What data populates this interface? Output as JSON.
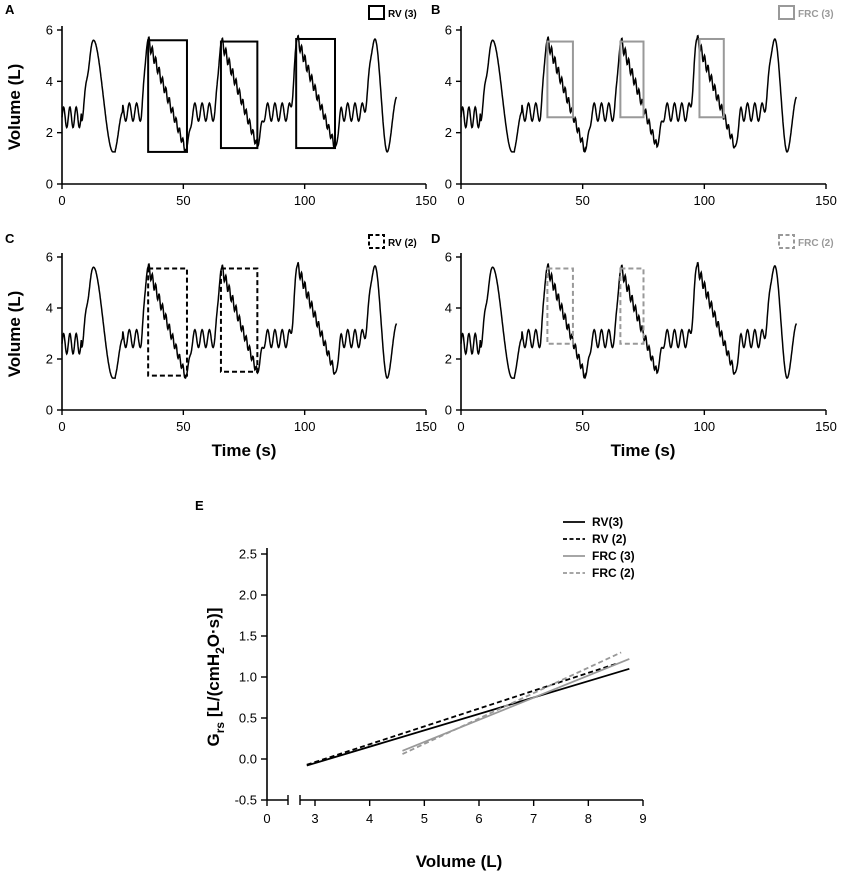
{
  "colors": {
    "black": "#000000",
    "gray": "#999999",
    "background": "#ffffff"
  },
  "chart_data": [
    {
      "panel": "A",
      "type": "line",
      "xlabel": "",
      "ylabel": "Volume (L)",
      "xlim": [
        0,
        150
      ],
      "ylim": [
        0,
        6
      ],
      "xticks": [
        0,
        50,
        100,
        150
      ],
      "yticks": [
        0,
        2,
        4,
        6
      ],
      "legend": {
        "label": "RV (3)",
        "style": "solid",
        "color": "#000000"
      },
      "boxes": [
        {
          "x0": 35.5,
          "x1": 51.5,
          "y0": 1.25,
          "y1": 5.6,
          "style": "solid",
          "color": "#000000"
        },
        {
          "x0": 65.5,
          "x1": 80.5,
          "y0": 1.4,
          "y1": 5.55,
          "style": "solid",
          "color": "#000000"
        },
        {
          "x0": 96.5,
          "x1": 112.5,
          "y0": 1.4,
          "y1": 5.65,
          "style": "solid",
          "color": "#000000"
        }
      ]
    },
    {
      "panel": "B",
      "type": "line",
      "xlabel": "",
      "ylabel": "",
      "xlim": [
        0,
        150
      ],
      "ylim": [
        0,
        6
      ],
      "xticks": [
        0,
        50,
        100,
        150
      ],
      "yticks": [
        0,
        2,
        4,
        6
      ],
      "legend": {
        "label": "FRC (3)",
        "style": "solid",
        "color": "#999999"
      },
      "boxes": [
        {
          "x0": 35.5,
          "x1": 46,
          "y0": 2.6,
          "y1": 5.55,
          "style": "solid",
          "color": "#999999"
        },
        {
          "x0": 65.5,
          "x1": 75,
          "y0": 2.6,
          "y1": 5.55,
          "style": "solid",
          "color": "#999999"
        },
        {
          "x0": 98,
          "x1": 108,
          "y0": 2.6,
          "y1": 5.65,
          "style": "solid",
          "color": "#999999"
        }
      ]
    },
    {
      "panel": "C",
      "type": "line",
      "xlabel": "Time (s)",
      "ylabel": "Volume (L)",
      "xlim": [
        0,
        150
      ],
      "ylim": [
        0,
        6
      ],
      "xticks": [
        0,
        50,
        100,
        150
      ],
      "yticks": [
        0,
        2,
        4,
        6
      ],
      "legend": {
        "label": "RV (2)",
        "style": "dashed",
        "color": "#000000"
      },
      "boxes": [
        {
          "x0": 35.5,
          "x1": 51.5,
          "y0": 1.35,
          "y1": 5.55,
          "style": "dashed",
          "color": "#000000"
        },
        {
          "x0": 65.5,
          "x1": 80.5,
          "y0": 1.5,
          "y1": 5.55,
          "style": "dashed",
          "color": "#000000"
        }
      ]
    },
    {
      "panel": "D",
      "type": "line",
      "xlabel": "Time (s)",
      "ylabel": "",
      "xlim": [
        0,
        150
      ],
      "ylim": [
        0,
        6
      ],
      "xticks": [
        0,
        50,
        100,
        150
      ],
      "yticks": [
        0,
        2,
        4,
        6
      ],
      "legend": {
        "label": "FRC (2)",
        "style": "dashed",
        "color": "#999999"
      },
      "boxes": [
        {
          "x0": 35.5,
          "x1": 46,
          "y0": 2.6,
          "y1": 5.55,
          "style": "dashed",
          "color": "#999999"
        },
        {
          "x0": 65.5,
          "x1": 75,
          "y0": 2.6,
          "y1": 5.55,
          "style": "dashed",
          "color": "#999999"
        }
      ]
    },
    {
      "panel": "E",
      "type": "line",
      "xlabel": "Volume (L)",
      "ylabel": "Grs [L/(cmH2O·s)]",
      "ylabel_parts": {
        "main": "G",
        "sub": "rs",
        "rest_a": " [L/(cmH",
        "sub2": "2",
        "rest_b": "O·s)]"
      },
      "xlim": [
        0,
        9
      ],
      "ylim": [
        -0.5,
        2.5
      ],
      "x_axis_break": [
        1,
        2.6
      ],
      "xticks": [
        0,
        3,
        4,
        5,
        6,
        7,
        8,
        9
      ],
      "yticks": [
        -0.5,
        0.0,
        0.5,
        1.0,
        1.5,
        2.0,
        2.5
      ],
      "ytick_labels": [
        "-0.5",
        "0.0",
        "0.5",
        "1.0",
        "1.5",
        "2.0",
        "2.5"
      ],
      "legend_position": "top-right",
      "series": [
        {
          "name": "RV(3)",
          "style": "solid",
          "color": "#000000",
          "x": [
            2.85,
            8.75
          ],
          "y": [
            -0.08,
            1.1
          ]
        },
        {
          "name": "RV (2)",
          "style": "dashed",
          "color": "#000000",
          "x": [
            2.85,
            8.55
          ],
          "y": [
            -0.07,
            1.17
          ]
        },
        {
          "name": "FRC (3)",
          "style": "solid",
          "color": "#999999",
          "x": [
            4.6,
            8.75
          ],
          "y": [
            0.1,
            1.22
          ]
        },
        {
          "name": "FRC (2)",
          "style": "dashed",
          "color": "#999999",
          "x": [
            4.6,
            8.6
          ],
          "y": [
            0.06,
            1.3
          ]
        }
      ]
    }
  ]
}
